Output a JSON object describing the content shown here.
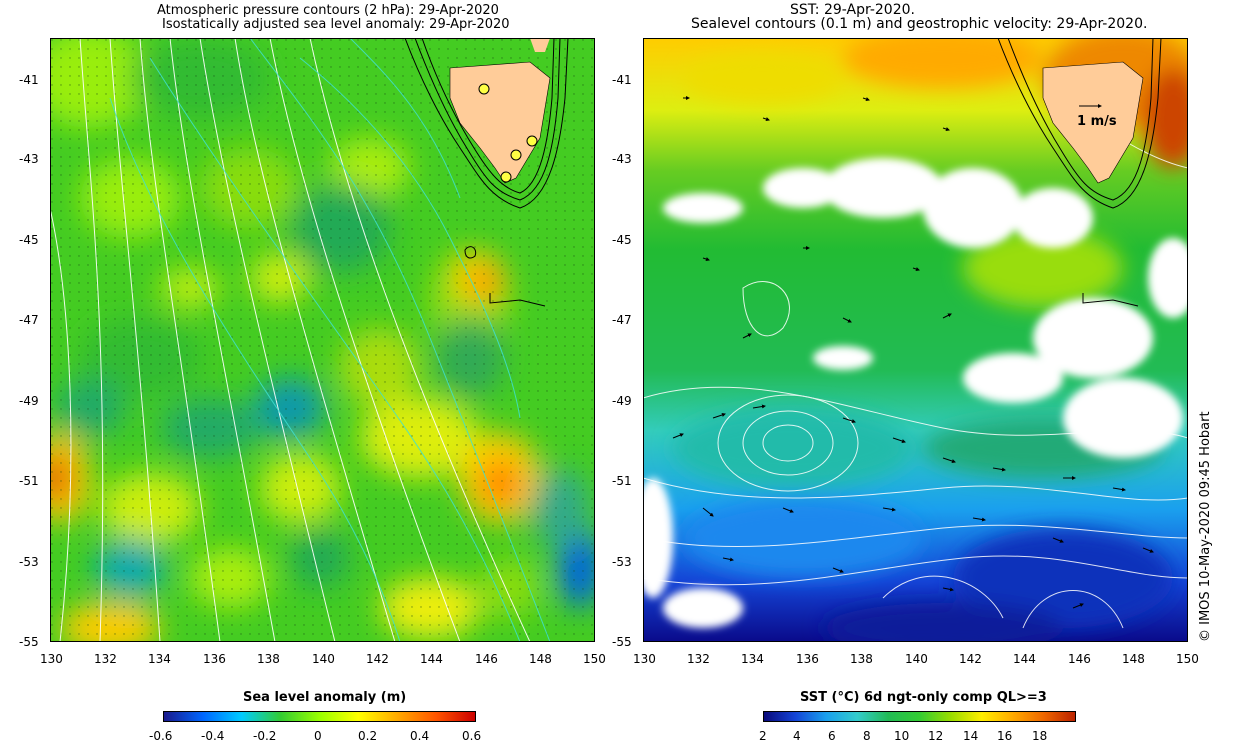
{
  "left_panel": {
    "title_line1": "Atmospheric pressure contours (2 hPa): 29-Apr-2020",
    "title_line2": "Isostatically adjusted sea level anomaly: 29-Apr-2020",
    "y_ticks": [
      "-41",
      "-43",
      "-45",
      "-47",
      "-49",
      "-51",
      "-53",
      "-55"
    ],
    "x_ticks": [
      "130",
      "132",
      "134",
      "136",
      "138",
      "140",
      "142",
      "144",
      "146",
      "148",
      "150"
    ],
    "colorbar_title": "Sea level anomaly (m)",
    "colorbar_ticks": [
      "-0.6",
      "-0.4",
      "-0.2",
      "0",
      "0.2",
      "0.4",
      "0.6"
    ]
  },
  "right_panel": {
    "title_line1": "SST: 29-Apr-2020.",
    "title_line2": "Sealevel contours (0.1 m) and geostrophic velocity: 29-Apr-2020.",
    "y_ticks": [
      "-41",
      "-43",
      "-45",
      "-47",
      "-49",
      "-51",
      "-53",
      "-55"
    ],
    "x_ticks": [
      "130",
      "132",
      "134",
      "136",
      "138",
      "140",
      "142",
      "144",
      "146",
      "148",
      "150"
    ],
    "velocity_scale_label": "1 m/s",
    "colorbar_title": "SST (°C) 6d ngt-only comp QL>=3",
    "colorbar_ticks": [
      "2",
      "4",
      "6",
      "8",
      "10",
      "12",
      "14",
      "16",
      "18"
    ]
  },
  "credit": "© IMOS 10-May-2020 09:45 Hobart",
  "map_data": {
    "lon_range": [
      130,
      150
    ],
    "lat_range": [
      -55,
      -40
    ],
    "tide_gauges": [
      {
        "lon": 146.0,
        "lat": -41.2
      },
      {
        "lon": 147.8,
        "lat": -42.6
      },
      {
        "lon": 147.2,
        "lat": -42.9
      },
      {
        "lon": 146.8,
        "lat": -43.5
      }
    ]
  },
  "colors": {
    "land": "#ffcc99",
    "pressure_contour": "#ffffff",
    "sla_contour": "#40e0d0",
    "bathymetry": "#000000",
    "sla_scale": [
      "#1a1a8c",
      "#0066ff",
      "#00ccff",
      "#33cc33",
      "#99ff00",
      "#ffff00",
      "#ffaa00",
      "#ff5500",
      "#cc0000"
    ],
    "sst_scale": [
      "#0a0a7a",
      "#1444d6",
      "#1aa0ee",
      "#33cccc",
      "#22bb55",
      "#33cc33",
      "#99dd00",
      "#ffee00",
      "#ffaa00",
      "#ee6600",
      "#bb2200"
    ]
  }
}
